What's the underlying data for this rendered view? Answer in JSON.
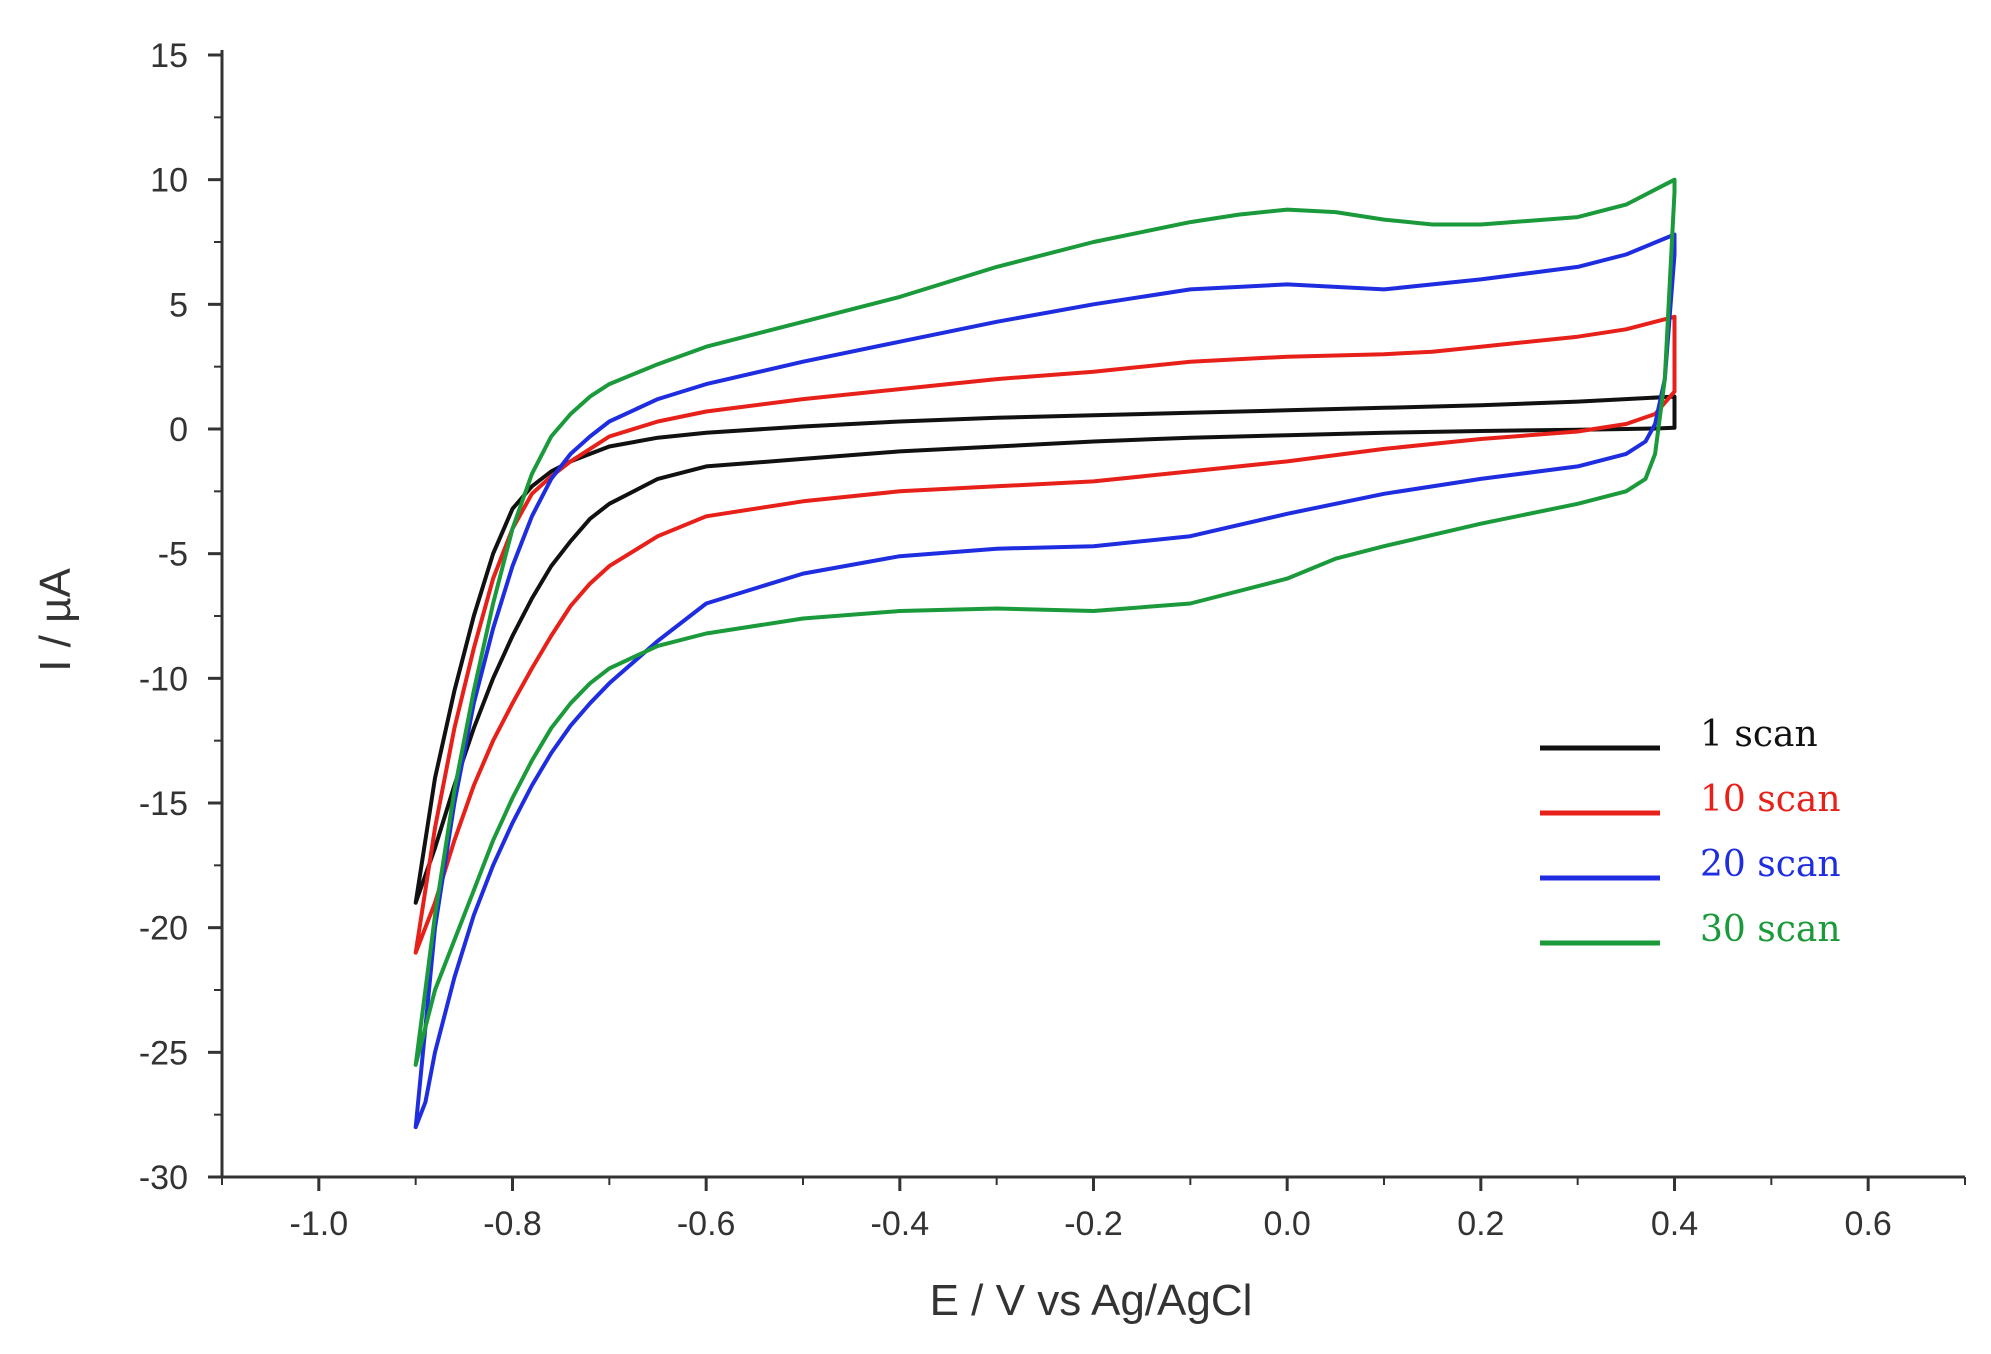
{
  "chart_data": {
    "type": "line",
    "title": "",
    "xlabel": "E / V vs Ag/AgCl",
    "ylabel": "I / µA",
    "xlim": [
      -1.1,
      0.7
    ],
    "ylim": [
      -30,
      15
    ],
    "xticks": [
      -1.0,
      -0.8,
      -0.6,
      -0.4,
      -0.2,
      0.0,
      0.2,
      0.4,
      0.6
    ],
    "xtick_labels": [
      "-1.0",
      "-0.8",
      "-0.6",
      "-0.4",
      "-0.2",
      "0.0",
      "0.2",
      "0.4",
      "0.6"
    ],
    "yticks": [
      15,
      10,
      5,
      0,
      -5,
      -10,
      -15,
      -20,
      -25,
      -30
    ],
    "ytick_labels": [
      "15",
      "10",
      "5",
      "0",
      "-5",
      "-10",
      "-15",
      "-20",
      "-25",
      "-30"
    ],
    "legend_position": "center-right",
    "series": [
      {
        "name": "1 scan",
        "color": "#111111",
        "anodic": [
          [
            -0.9,
            -19.0
          ],
          [
            -0.88,
            -16.8
          ],
          [
            -0.86,
            -14.3
          ],
          [
            -0.84,
            -12.0
          ],
          [
            -0.82,
            -10.0
          ],
          [
            -0.8,
            -8.3
          ],
          [
            -0.78,
            -6.8
          ],
          [
            -0.76,
            -5.5
          ],
          [
            -0.74,
            -4.5
          ],
          [
            -0.72,
            -3.6
          ],
          [
            -0.7,
            -3.0
          ],
          [
            -0.65,
            -2.0
          ],
          [
            -0.6,
            -1.5
          ],
          [
            -0.5,
            -1.2
          ],
          [
            -0.4,
            -0.9
          ],
          [
            -0.3,
            -0.7
          ],
          [
            -0.2,
            -0.5
          ],
          [
            -0.1,
            -0.35
          ],
          [
            0.0,
            -0.25
          ],
          [
            0.1,
            -0.15
          ],
          [
            0.2,
            -0.08
          ],
          [
            0.3,
            -0.03
          ],
          [
            0.35,
            0.0
          ],
          [
            0.38,
            0.02
          ],
          [
            0.4,
            0.05
          ]
        ],
        "cathodic": [
          [
            0.4,
            1.3
          ],
          [
            0.3,
            1.1
          ],
          [
            0.2,
            0.95
          ],
          [
            0.1,
            0.85
          ],
          [
            0.0,
            0.75
          ],
          [
            -0.1,
            0.65
          ],
          [
            -0.2,
            0.55
          ],
          [
            -0.3,
            0.45
          ],
          [
            -0.4,
            0.3
          ],
          [
            -0.5,
            0.1
          ],
          [
            -0.6,
            -0.15
          ],
          [
            -0.65,
            -0.35
          ],
          [
            -0.7,
            -0.7
          ],
          [
            -0.72,
            -1.0
          ],
          [
            -0.74,
            -1.3
          ],
          [
            -0.76,
            -1.7
          ],
          [
            -0.78,
            -2.3
          ],
          [
            -0.8,
            -3.2
          ],
          [
            -0.82,
            -5.0
          ],
          [
            -0.84,
            -7.5
          ],
          [
            -0.86,
            -10.5
          ],
          [
            -0.88,
            -14.0
          ],
          [
            -0.9,
            -19.0
          ]
        ]
      },
      {
        "name": "10 scan",
        "color": "#e8201a",
        "anodic": [
          [
            -0.9,
            -21.0
          ],
          [
            -0.88,
            -19.0
          ],
          [
            -0.86,
            -16.5
          ],
          [
            -0.84,
            -14.3
          ],
          [
            -0.82,
            -12.5
          ],
          [
            -0.8,
            -11.0
          ],
          [
            -0.78,
            -9.6
          ],
          [
            -0.76,
            -8.3
          ],
          [
            -0.74,
            -7.1
          ],
          [
            -0.72,
            -6.2
          ],
          [
            -0.7,
            -5.5
          ],
          [
            -0.65,
            -4.3
          ],
          [
            -0.6,
            -3.5
          ],
          [
            -0.5,
            -2.9
          ],
          [
            -0.4,
            -2.5
          ],
          [
            -0.3,
            -2.3
          ],
          [
            -0.2,
            -2.1
          ],
          [
            -0.1,
            -1.7
          ],
          [
            0.0,
            -1.3
          ],
          [
            0.1,
            -0.8
          ],
          [
            0.2,
            -0.4
          ],
          [
            0.3,
            -0.1
          ],
          [
            0.35,
            0.2
          ],
          [
            0.38,
            0.6
          ],
          [
            0.4,
            1.5
          ]
        ],
        "cathodic": [
          [
            0.4,
            4.5
          ],
          [
            0.35,
            4.0
          ],
          [
            0.3,
            3.7
          ],
          [
            0.2,
            3.3
          ],
          [
            0.15,
            3.1
          ],
          [
            0.1,
            3.0
          ],
          [
            0.0,
            2.9
          ],
          [
            -0.1,
            2.7
          ],
          [
            -0.2,
            2.3
          ],
          [
            -0.3,
            2.0
          ],
          [
            -0.4,
            1.6
          ],
          [
            -0.5,
            1.2
          ],
          [
            -0.6,
            0.7
          ],
          [
            -0.65,
            0.3
          ],
          [
            -0.7,
            -0.3
          ],
          [
            -0.72,
            -0.8
          ],
          [
            -0.74,
            -1.3
          ],
          [
            -0.76,
            -1.9
          ],
          [
            -0.78,
            -2.6
          ],
          [
            -0.8,
            -4.0
          ],
          [
            -0.82,
            -6.0
          ],
          [
            -0.84,
            -8.8
          ],
          [
            -0.86,
            -12.0
          ],
          [
            -0.88,
            -16.0
          ],
          [
            -0.9,
            -21.0
          ]
        ]
      },
      {
        "name": "20 scan",
        "color": "#1f2de0",
        "anodic": [
          [
            -0.9,
            -28.0
          ],
          [
            -0.89,
            -27.0
          ],
          [
            -0.88,
            -25.0
          ],
          [
            -0.86,
            -22.0
          ],
          [
            -0.84,
            -19.5
          ],
          [
            -0.82,
            -17.5
          ],
          [
            -0.8,
            -15.8
          ],
          [
            -0.78,
            -14.3
          ],
          [
            -0.76,
            -13.0
          ],
          [
            -0.74,
            -11.9
          ],
          [
            -0.72,
            -11.0
          ],
          [
            -0.7,
            -10.2
          ],
          [
            -0.65,
            -8.5
          ],
          [
            -0.6,
            -7.0
          ],
          [
            -0.5,
            -5.8
          ],
          [
            -0.4,
            -5.1
          ],
          [
            -0.3,
            -4.8
          ],
          [
            -0.2,
            -4.7
          ],
          [
            -0.1,
            -4.3
          ],
          [
            0.0,
            -3.4
          ],
          [
            0.1,
            -2.6
          ],
          [
            0.2,
            -2.0
          ],
          [
            0.3,
            -1.5
          ],
          [
            0.35,
            -1.0
          ],
          [
            0.37,
            -0.5
          ],
          [
            0.38,
            0.2
          ],
          [
            0.39,
            2.0
          ],
          [
            0.4,
            7.0
          ]
        ],
        "cathodic": [
          [
            0.4,
            7.8
          ],
          [
            0.35,
            7.0
          ],
          [
            0.3,
            6.5
          ],
          [
            0.2,
            6.0
          ],
          [
            0.15,
            5.8
          ],
          [
            0.1,
            5.6
          ],
          [
            0.05,
            5.7
          ],
          [
            0.0,
            5.8
          ],
          [
            -0.1,
            5.6
          ],
          [
            -0.2,
            5.0
          ],
          [
            -0.3,
            4.3
          ],
          [
            -0.4,
            3.5
          ],
          [
            -0.5,
            2.7
          ],
          [
            -0.6,
            1.8
          ],
          [
            -0.65,
            1.2
          ],
          [
            -0.7,
            0.3
          ],
          [
            -0.72,
            -0.3
          ],
          [
            -0.74,
            -1.0
          ],
          [
            -0.76,
            -2.0
          ],
          [
            -0.78,
            -3.5
          ],
          [
            -0.8,
            -5.5
          ],
          [
            -0.82,
            -8.0
          ],
          [
            -0.84,
            -11.0
          ],
          [
            -0.86,
            -15.0
          ],
          [
            -0.88,
            -20.0
          ],
          [
            -0.89,
            -24.0
          ],
          [
            -0.9,
            -28.0
          ]
        ]
      },
      {
        "name": "30 scan",
        "color": "#1a9a3a",
        "anodic": [
          [
            -0.9,
            -25.5
          ],
          [
            -0.89,
            -24.0
          ],
          [
            -0.88,
            -22.5
          ],
          [
            -0.86,
            -20.5
          ],
          [
            -0.84,
            -18.5
          ],
          [
            -0.82,
            -16.5
          ],
          [
            -0.8,
            -14.8
          ],
          [
            -0.78,
            -13.3
          ],
          [
            -0.76,
            -12.0
          ],
          [
            -0.74,
            -11.0
          ],
          [
            -0.72,
            -10.2
          ],
          [
            -0.7,
            -9.6
          ],
          [
            -0.65,
            -8.7
          ],
          [
            -0.6,
            -8.2
          ],
          [
            -0.5,
            -7.6
          ],
          [
            -0.4,
            -7.3
          ],
          [
            -0.3,
            -7.2
          ],
          [
            -0.2,
            -7.3
          ],
          [
            -0.1,
            -7.0
          ],
          [
            0.0,
            -6.0
          ],
          [
            0.05,
            -5.2
          ],
          [
            0.1,
            -4.7
          ],
          [
            0.2,
            -3.8
          ],
          [
            0.3,
            -3.0
          ],
          [
            0.35,
            -2.5
          ],
          [
            0.37,
            -2.0
          ],
          [
            0.38,
            -1.0
          ],
          [
            0.39,
            2.0
          ],
          [
            0.4,
            9.5
          ]
        ],
        "cathodic": [
          [
            0.4,
            10.0
          ],
          [
            0.35,
            9.0
          ],
          [
            0.3,
            8.5
          ],
          [
            0.2,
            8.2
          ],
          [
            0.15,
            8.2
          ],
          [
            0.1,
            8.4
          ],
          [
            0.05,
            8.7
          ],
          [
            0.0,
            8.8
          ],
          [
            -0.05,
            8.6
          ],
          [
            -0.1,
            8.3
          ],
          [
            -0.2,
            7.5
          ],
          [
            -0.3,
            6.5
          ],
          [
            -0.4,
            5.3
          ],
          [
            -0.5,
            4.3
          ],
          [
            -0.6,
            3.3
          ],
          [
            -0.65,
            2.6
          ],
          [
            -0.7,
            1.8
          ],
          [
            -0.72,
            1.3
          ],
          [
            -0.74,
            0.6
          ],
          [
            -0.76,
            -0.3
          ],
          [
            -0.78,
            -1.8
          ],
          [
            -0.8,
            -4.0
          ],
          [
            -0.82,
            -7.0
          ],
          [
            -0.84,
            -10.5
          ],
          [
            -0.86,
            -14.5
          ],
          [
            -0.88,
            -19.5
          ],
          [
            -0.89,
            -22.5
          ],
          [
            -0.9,
            -25.5
          ]
        ]
      }
    ]
  }
}
